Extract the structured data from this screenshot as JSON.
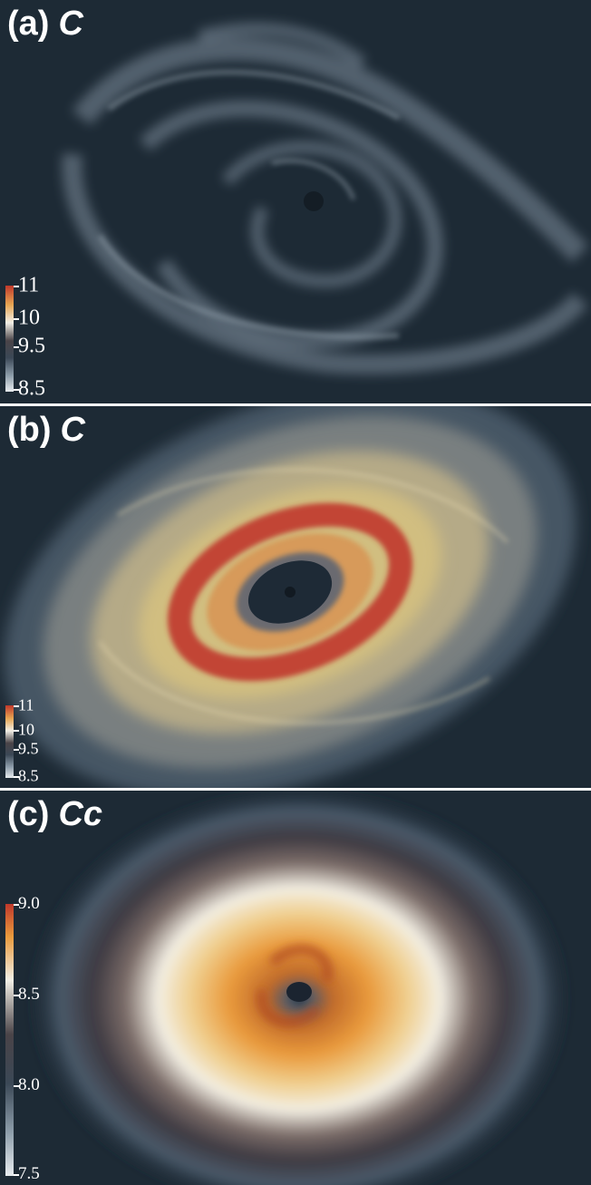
{
  "panels": [
    {
      "letter": "(a)",
      "variable": "C",
      "colorbar": {
        "ticks": [
          "11",
          "10",
          "9.5",
          "8.5"
        ]
      }
    },
    {
      "letter": "(b)",
      "variable": "C",
      "colorbar": {
        "ticks": [
          "11",
          "10",
          "9.5",
          "8.5"
        ]
      }
    },
    {
      "letter": "(c)",
      "variable": "Cc",
      "colorbar": {
        "ticks": [
          "9.0",
          "8.5",
          "8.0",
          "7.5"
        ]
      }
    }
  ],
  "colors": {
    "background": "#1d2a35",
    "high": "#c0382b",
    "mid_high": "#e6a552",
    "mid": "#f2efe6",
    "mid_low": "#4a4448",
    "low": "#6d8092"
  }
}
